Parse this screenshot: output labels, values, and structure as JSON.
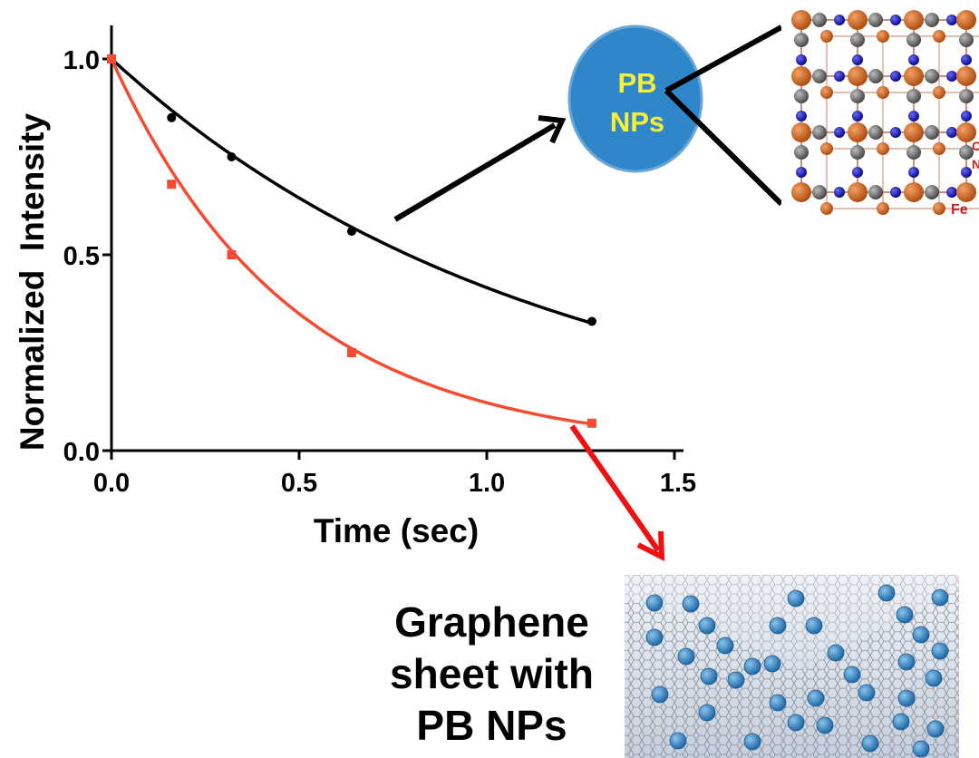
{
  "chart_data": {
    "type": "scatter",
    "xlabel": "Time (sec)",
    "ylabel": "Normalized  Intensity",
    "xlim": [
      0,
      1.5
    ],
    "ylim": [
      0,
      1.0
    ],
    "x_ticks": [
      "0.0",
      "0.5",
      "1.0",
      "1.5"
    ],
    "y_ticks": [
      "0.0",
      "0.5",
      "1.0"
    ],
    "grid": false,
    "series": [
      {
        "color": "#000000",
        "marker": "circle",
        "fit": "exponential decay",
        "points": [
          {
            "x": 0.0,
            "y": 1.0
          },
          {
            "x": 0.16,
            "y": 0.85
          },
          {
            "x": 0.32,
            "y": 0.75
          },
          {
            "x": 0.64,
            "y": 0.56
          },
          {
            "x": 1.28,
            "y": 0.33
          }
        ]
      },
      {
        "color": "#f44b33",
        "marker": "square",
        "fit": "exponential decay",
        "points": [
          {
            "x": 0.0,
            "y": 1.0
          },
          {
            "x": 0.16,
            "y": 0.68
          },
          {
            "x": 0.32,
            "y": 0.5
          },
          {
            "x": 0.64,
            "y": 0.25
          },
          {
            "x": 1.28,
            "y": 0.07
          }
        ]
      }
    ]
  },
  "annotations": {
    "pb_circle": {
      "line1": "PB",
      "line2": "NPs"
    },
    "crystal_labels": {
      "fe": "Fe",
      "c": "C",
      "n": "N"
    },
    "graphene_caption": [
      "Graphene",
      "sheet with",
      "PB NPs"
    ]
  },
  "colors": {
    "black_series": "#000000",
    "red_series": "#f44b33",
    "pb_circle_fill": "#2f86c8",
    "pb_text": "#f7ee3a",
    "iron_atom": "#d8661f",
    "carbon_atom": "#6f6f6f",
    "nitrogen_atom": "#1414c8",
    "graphene_np": "#3f8fc9"
  }
}
